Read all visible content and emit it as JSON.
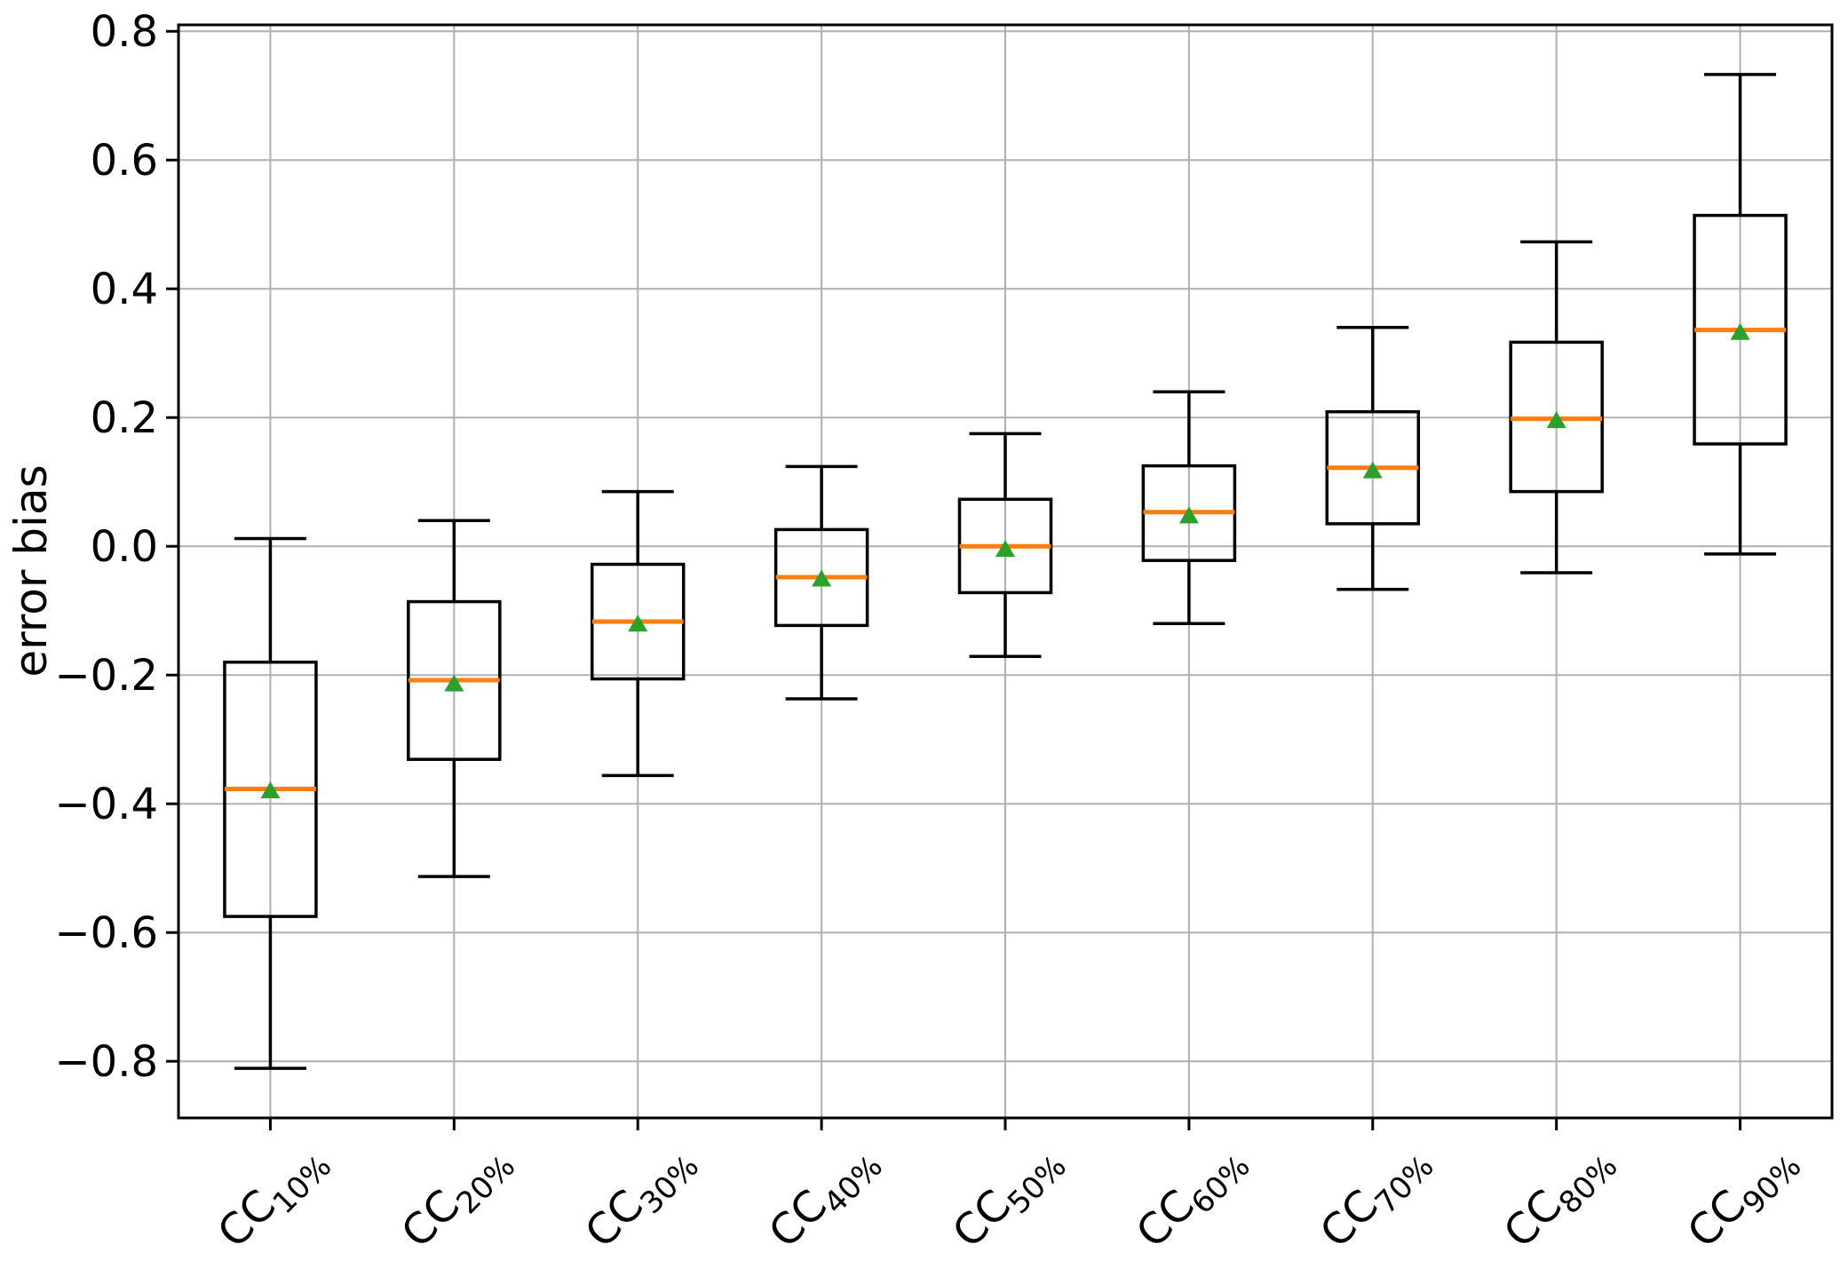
{
  "figure": {
    "background": "#ffffff"
  },
  "chart_data": {
    "type": "boxplot",
    "title": "",
    "xlabel": "",
    "ylabel": "error bias",
    "categories": [
      "CC10%",
      "CC20%",
      "CC30%",
      "CC40%",
      "CC50%",
      "CC60%",
      "CC70%",
      "CC80%",
      "CC90%"
    ],
    "category_base": "CC",
    "category_subs": [
      "10%",
      "20%",
      "30%",
      "40%",
      "50%",
      "60%",
      "70%",
      "80%",
      "90%"
    ],
    "yticks": [
      {
        "value": 0.8,
        "label": "0.8"
      },
      {
        "value": 0.6,
        "label": "0.6"
      },
      {
        "value": 0.4,
        "label": "0.4"
      },
      {
        "value": 0.2,
        "label": "0.2"
      },
      {
        "value": 0.0,
        "label": "0.0"
      },
      {
        "value": -0.2,
        "label": "−0.2"
      },
      {
        "value": -0.4,
        "label": "−0.4"
      },
      {
        "value": -0.6,
        "label": "−0.6"
      },
      {
        "value": -0.8,
        "label": "−0.8"
      }
    ],
    "ylim": [
      -0.888,
      0.81
    ],
    "xlim": [
      0.5,
      9.5
    ],
    "grid": true,
    "legend": false,
    "series": [
      {
        "category": "CC10%",
        "whisker_low": -0.811,
        "q1": -0.575,
        "median": -0.377,
        "mean": -0.379,
        "q3": -0.18,
        "whisker_high": 0.012
      },
      {
        "category": "CC20%",
        "whisker_low": -0.513,
        "q1": -0.331,
        "median": -0.208,
        "mean": -0.213,
        "q3": -0.086,
        "whisker_high": 0.04
      },
      {
        "category": "CC30%",
        "whisker_low": -0.356,
        "q1": -0.206,
        "median": -0.117,
        "mean": -0.12,
        "q3": -0.028,
        "whisker_high": 0.085
      },
      {
        "category": "CC40%",
        "whisker_low": -0.237,
        "q1": -0.123,
        "median": -0.048,
        "mean": -0.05,
        "q3": 0.026,
        "whisker_high": 0.124
      },
      {
        "category": "CC50%",
        "whisker_low": -0.171,
        "q1": -0.072,
        "median": 0.0,
        "mean": -0.004,
        "q3": 0.073,
        "whisker_high": 0.175
      },
      {
        "category": "CC60%",
        "whisker_low": -0.12,
        "q1": -0.022,
        "median": 0.053,
        "mean": 0.048,
        "q3": 0.125,
        "whisker_high": 0.24
      },
      {
        "category": "CC70%",
        "whisker_low": -0.067,
        "q1": 0.035,
        "median": 0.122,
        "mean": 0.118,
        "q3": 0.209,
        "whisker_high": 0.34
      },
      {
        "category": "CC80%",
        "whisker_low": -0.041,
        "q1": 0.085,
        "median": 0.198,
        "mean": 0.196,
        "q3": 0.317,
        "whisker_high": 0.473
      },
      {
        "category": "CC90%",
        "whisker_low": -0.012,
        "q1": 0.159,
        "median": 0.336,
        "mean": 0.333,
        "q3": 0.514,
        "whisker_high": 0.733
      }
    ],
    "colors": {
      "box": "#000000",
      "median": "#ff7f0e",
      "mean": "#2ca02c",
      "grid": "#b0b0b0",
      "spine": "#000000",
      "background": "#ffffff"
    }
  }
}
